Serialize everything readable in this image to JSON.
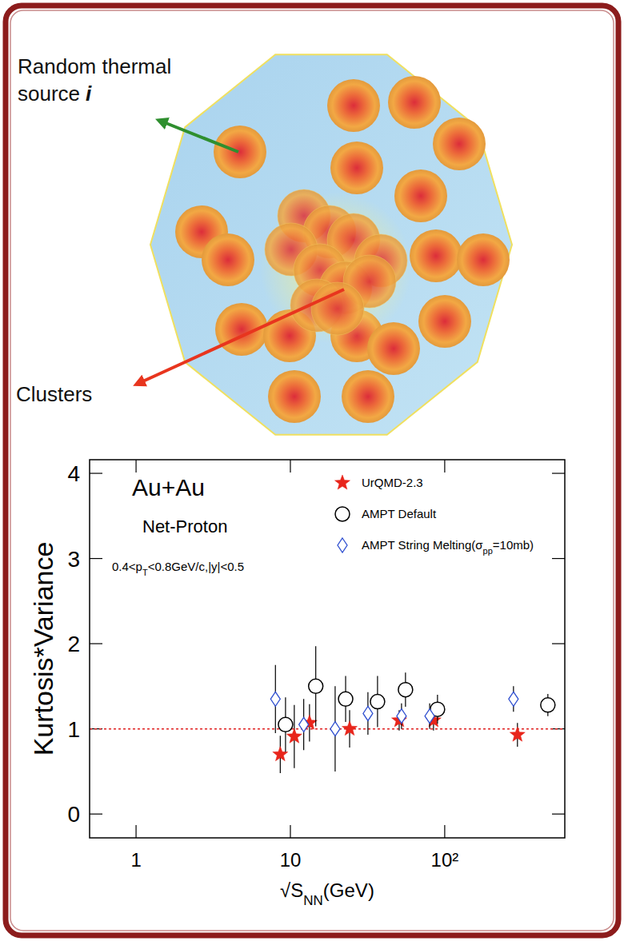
{
  "diagram": {
    "source_label": {
      "lines": [
        "Random thermal",
        "source"
      ],
      "index": "i"
    },
    "cluster_label": "Clusters"
  },
  "chart_data": {
    "type": "scatter",
    "title": "Au+Au",
    "subtitle": "Net-Proton",
    "annotations": [
      [
        "0.4<p",
        {
          "sub": "T"
        },
        "<0.8GeV/c,|y|<0.5"
      ]
    ],
    "xlabel": [
      "√S",
      {
        "sub": "NN"
      },
      "(GeV)"
    ],
    "ylabel": "Kurtosis*Variance",
    "log": "x",
    "xlim": [
      0.5,
      600
    ],
    "xticks": [
      1,
      10,
      {
        "value": 100,
        "label": "10²"
      }
    ],
    "ylim": [
      -0.28,
      4.16
    ],
    "yticks": [
      0,
      1,
      2,
      3,
      4
    ],
    "grid": false,
    "legend": "top-right",
    "reference_value": 1,
    "series": [
      {
        "name": "UrQMD-2.3",
        "color": "#e8251b",
        "marker": "star",
        "x": [
          8.6,
          10.6,
          13.3,
          24.2,
          50.7,
          84.6,
          296
        ],
        "values": [
          0.7,
          0.91,
          1.07,
          1.0,
          1.1,
          1.1,
          0.93
        ],
        "errors": [
          0.22,
          0.37,
          0.22,
          0.22,
          0.12,
          0.12,
          0.14
        ]
      },
      {
        "name": "AMPT Default",
        "color": "#000000",
        "marker": "circle",
        "x": [
          9.3,
          14.6,
          22.8,
          36.7,
          55.7,
          89.8,
          466
        ],
        "values": [
          1.05,
          1.5,
          1.35,
          1.32,
          1.46,
          1.23,
          1.28
        ],
        "errors": [
          0.32,
          0.47,
          0.27,
          0.3,
          0.2,
          0.17,
          0.13
        ]
      },
      {
        "name": [
          "AMPT String Melting(σ",
          {
            "sub": "pp"
          },
          "=10mb)"
        ],
        "color": "#3050d0",
        "marker": "diamond",
        "x": [
          8.0,
          12.2,
          19.5,
          31.8,
          52.5,
          79.9,
          279
        ],
        "values": [
          1.35,
          1.05,
          1.0,
          1.18,
          1.15,
          1.15,
          1.35
        ],
        "errors": [
          0.4,
          0.3,
          0.5,
          0.25,
          0.15,
          0.15,
          0.15
        ]
      }
    ]
  }
}
